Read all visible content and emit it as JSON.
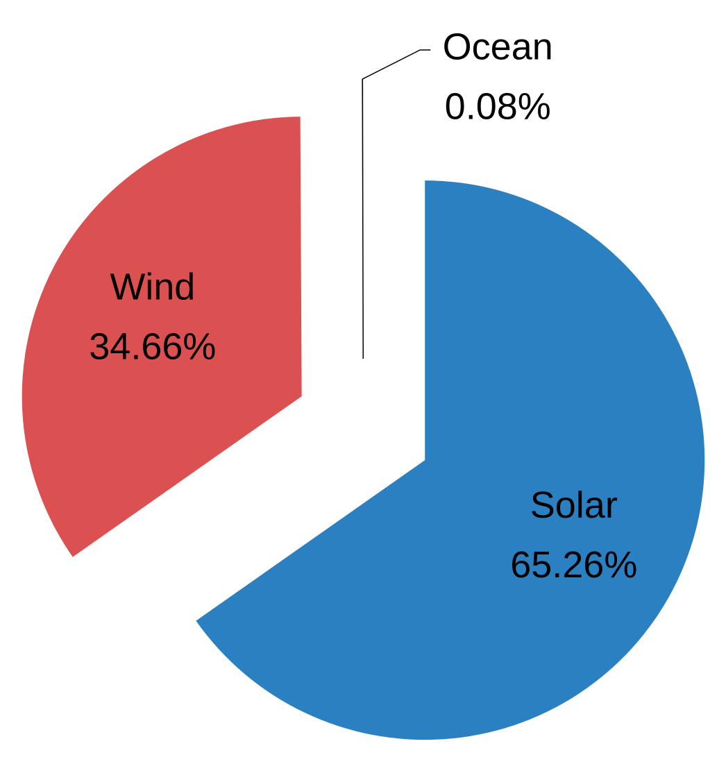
{
  "chart_data": {
    "type": "pie",
    "categories": [
      "Solar",
      "Wind",
      "Ocean"
    ],
    "values": [
      65.26,
      34.66,
      0.08
    ],
    "value_labels": [
      "65.26%",
      "34.66%",
      "0.08%"
    ],
    "colors": [
      "#2a80c0",
      "#db5050",
      "#9bbb59"
    ]
  }
}
